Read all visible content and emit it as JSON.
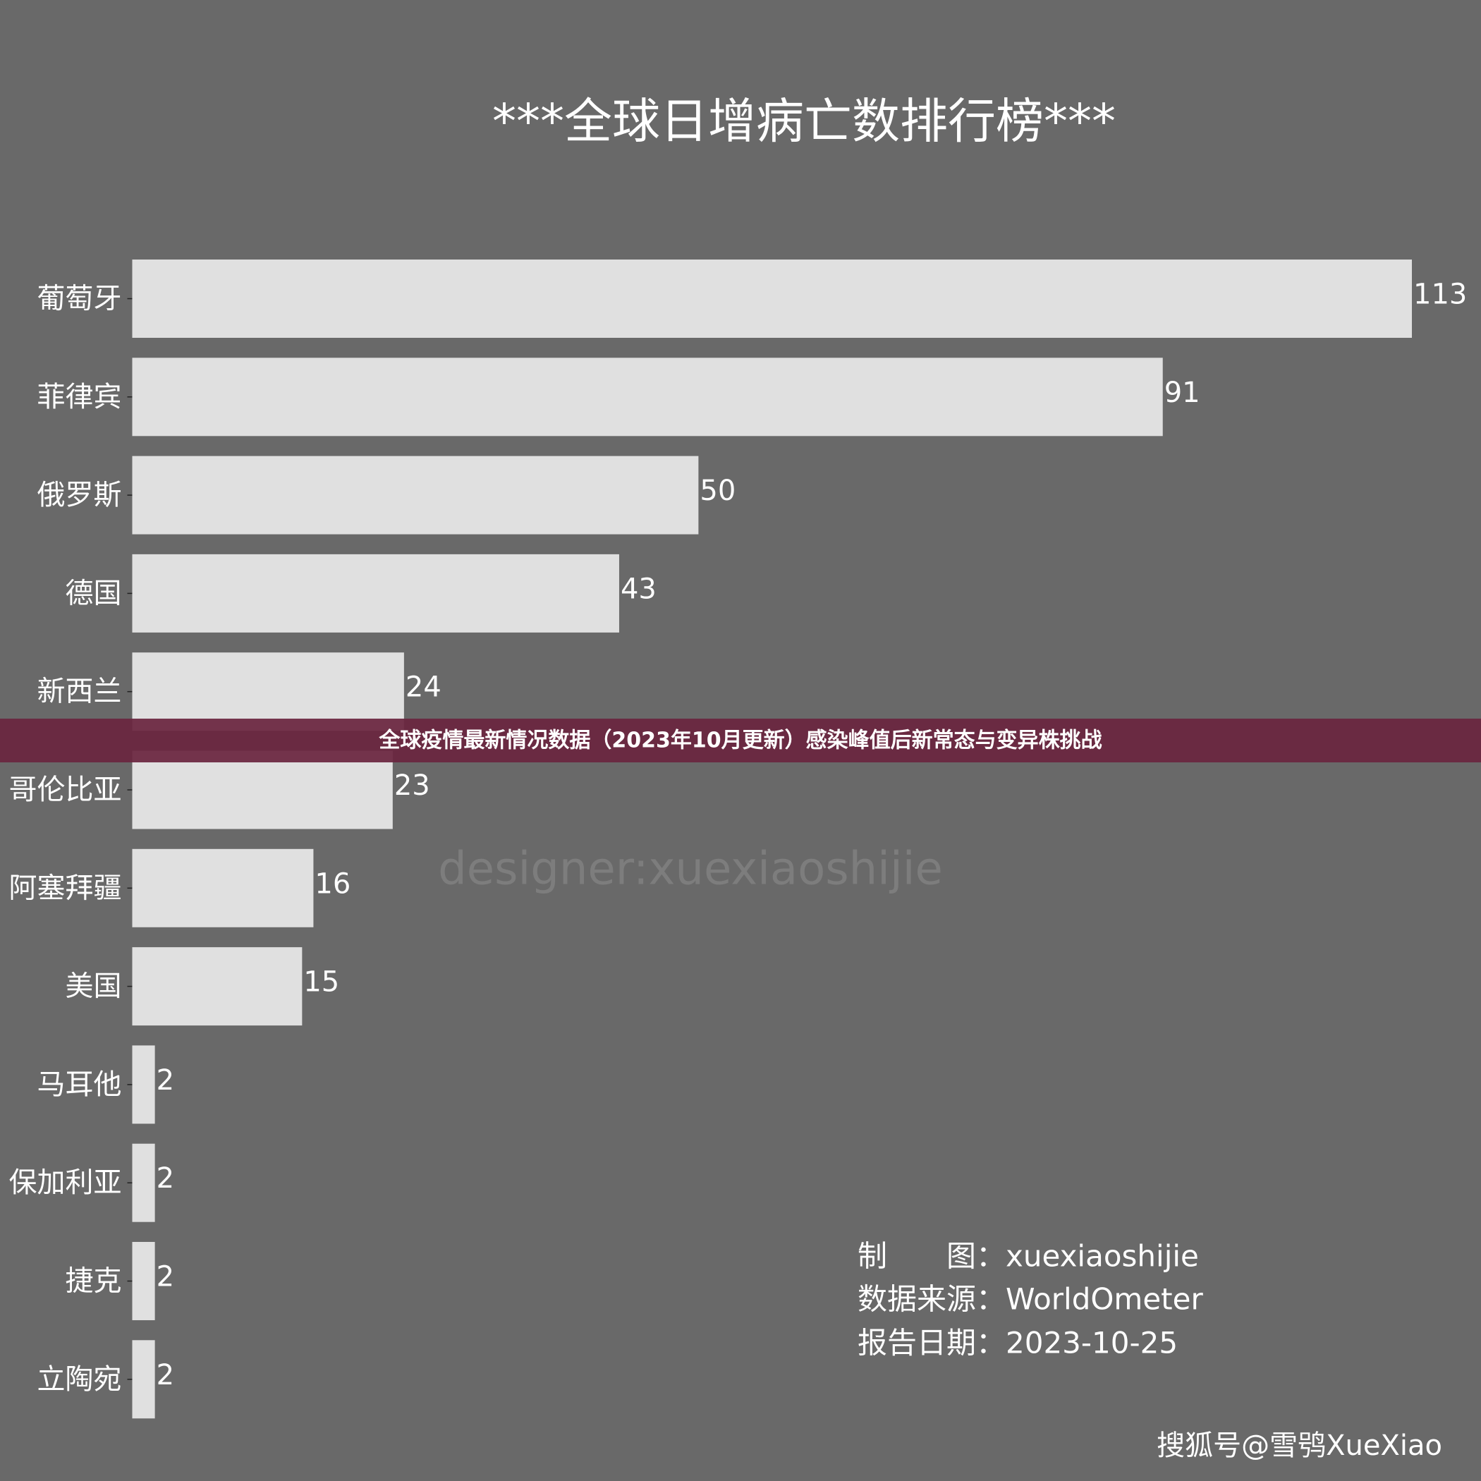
{
  "chart_data": {
    "type": "barh",
    "title": "***全球日增病亡数排行榜***",
    "categories": [
      "葡萄牙",
      "菲律宾",
      "俄罗斯",
      "德国",
      "新西兰",
      "哥伦比亚",
      "阿塞拜疆",
      "美国",
      "马耳他",
      "保加利亚",
      "捷克",
      "立陶宛"
    ],
    "values": [
      113,
      91,
      50,
      43,
      24,
      23,
      16,
      15,
      2,
      2,
      2,
      2
    ],
    "color": "#e0e0e0",
    "watermark": "designer:xuexiaoshijie",
    "credits": [
      "制　　图：xuexiaoshijie",
      "数据来源：WorldOmeter",
      "报告日期：2023-10-25"
    ]
  },
  "banner": "全球疫情最新情况数据（2023年10月更新）感染峰值后新常态与变异株挑战",
  "footer": "搜狐号@雪鸮XueXiao"
}
